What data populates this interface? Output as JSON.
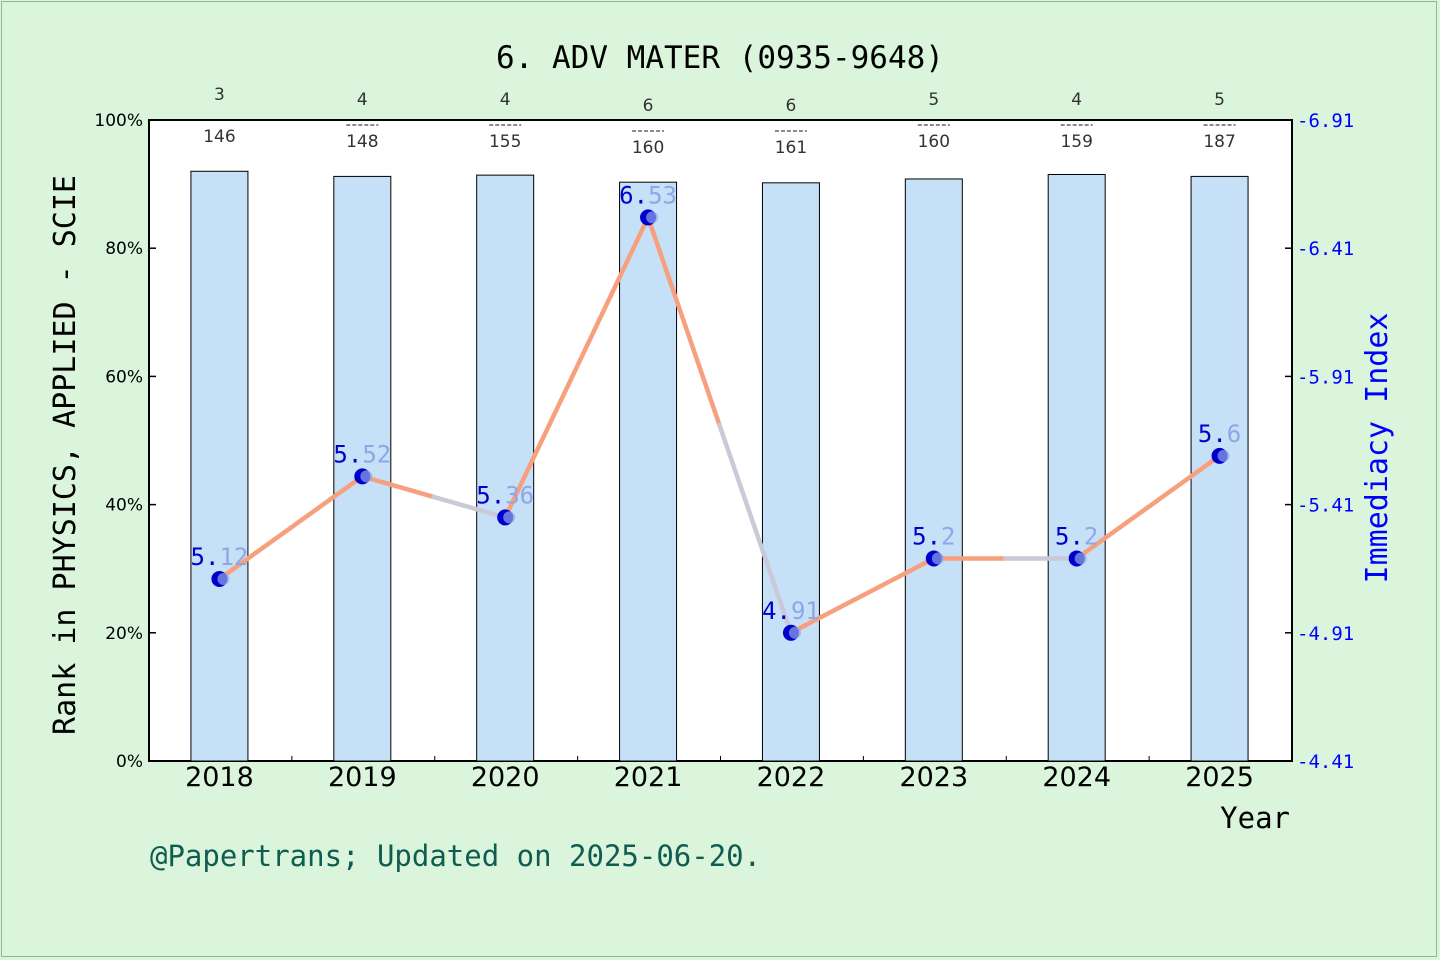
{
  "chart_data": {
    "type": "bar",
    "title": "6. ADV MATER (0935-9648)",
    "xlabel": "Year",
    "ylabel": "Rank in PHYSICS, APPLIED - SCIE",
    "y2label": "Immediacy Index",
    "footer": "@Papertrans; Updated on 2025-06-20.",
    "categories": [
      "2018",
      "2019",
      "2020",
      "2021",
      "2022",
      "2023",
      "2024",
      "2025"
    ],
    "ylim": [
      0,
      100
    ],
    "yticks": [
      "0%",
      "20%",
      "40%",
      "60%",
      "80%",
      "100%"
    ],
    "y2lim": [
      4.41,
      6.91
    ],
    "y2ticks": [
      "4.41",
      "4.91",
      "5.41",
      "5.91",
      "6.41",
      "6.91"
    ],
    "grid": false,
    "series": [
      {
        "kind": "bar",
        "values": [
          92,
          91.2,
          91.4,
          90.3,
          90.2,
          90.8,
          91.5,
          91.2
        ],
        "rank_labels": [
          "3",
          "4",
          "4",
          "6",
          "6",
          "5",
          "4",
          "5"
        ],
        "total_labels": [
          "146",
          "148",
          "155",
          "160",
          "161",
          "160",
          "159",
          "187"
        ]
      },
      {
        "kind": "line",
        "axis": "right",
        "values": [
          5.12,
          5.52,
          5.36,
          6.53,
          4.91,
          5.2,
          5.2,
          5.6
        ],
        "labels": [
          "5.12",
          "5.52",
          "5.36",
          "6.53",
          "4.91",
          "5.2",
          "5.2",
          "5.6"
        ]
      }
    ],
    "colors": {
      "background": "#dbf5dd",
      "plot_bg": "#ffffff",
      "bar": "#c5e0f7",
      "line": "#f7a07e",
      "line_alt": "#c9c9d9",
      "marker": "#0000cc",
      "right_axis": "#0000ff",
      "footer": "#0f5c50"
    }
  }
}
